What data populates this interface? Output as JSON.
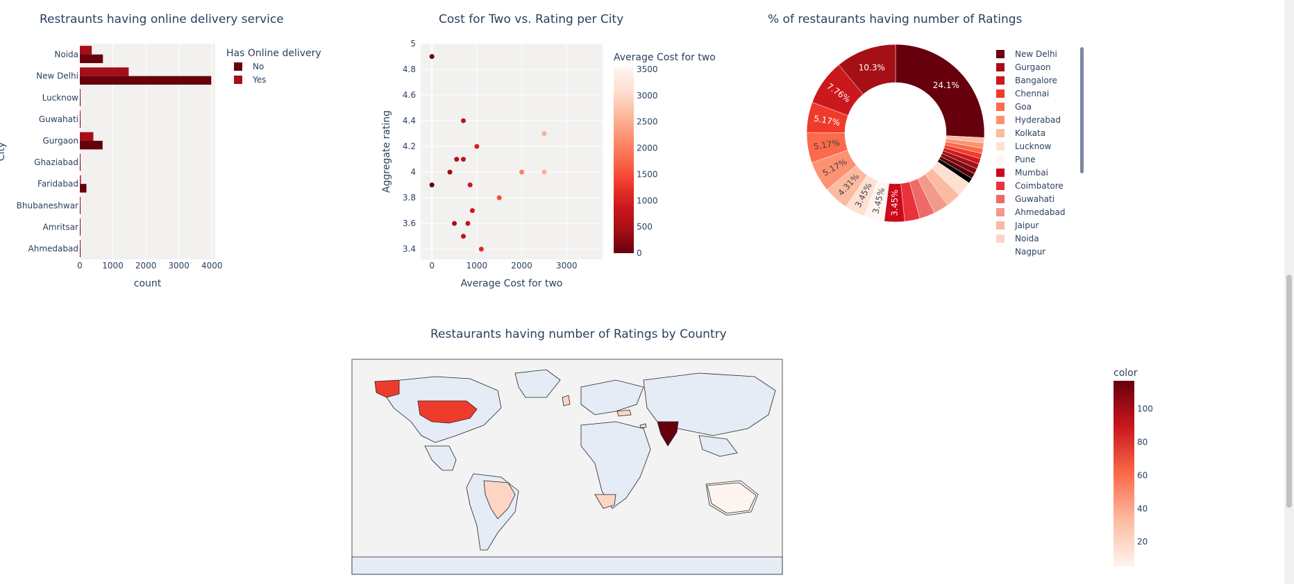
{
  "chart_data": [
    {
      "type": "bar",
      "orientation": "horizontal",
      "title": "Restraunts having online delivery service",
      "xlabel": "count",
      "ylabel": "City",
      "categories": [
        "Noida",
        "New Delhi",
        "Lucknow",
        "Guwahati",
        "Gurgaon",
        "Ghaziabad",
        "Faridabad",
        "Bhubaneshwar",
        "Amritsar",
        "Ahmedabad"
      ],
      "legend_title": "Has Online delivery",
      "series": [
        {
          "name": "No",
          "color": "#67000d",
          "values": [
            700,
            3980,
            15,
            15,
            690,
            20,
            200,
            20,
            18,
            8
          ]
        },
        {
          "name": "Yes",
          "color": "#a50f15",
          "values": [
            360,
            1480,
            6,
            5,
            410,
            5,
            30,
            3,
            2,
            2
          ]
        }
      ],
      "xticks": [
        0,
        1000,
        2000,
        3000,
        4000
      ],
      "xlim": [
        0,
        4100
      ]
    },
    {
      "type": "scatter",
      "title": "Cost for Two vs. Rating per City",
      "xlabel": "Average Cost for two",
      "ylabel": "Aggregate rating",
      "xticks": [
        0,
        1000,
        2000,
        3000
      ],
      "yticks": [
        3.4,
        3.6,
        3.8,
        4,
        4.2,
        4.4,
        4.6,
        4.8,
        5
      ],
      "xlim": [
        -250,
        3800
      ],
      "ylim": [
        3.32,
        5.0
      ],
      "colorbar_title": "Average Cost for two",
      "colorbar_ticks": [
        0,
        500,
        1000,
        1500,
        2000,
        2500,
        3000,
        3500
      ],
      "points": [
        {
          "x": 0,
          "y": 4.9
        },
        {
          "x": 0,
          "y": 3.9
        },
        {
          "x": 700,
          "y": 4.4
        },
        {
          "x": 1000,
          "y": 4.2
        },
        {
          "x": 550,
          "y": 4.1
        },
        {
          "x": 700,
          "y": 4.1
        },
        {
          "x": 400,
          "y": 4.0
        },
        {
          "x": 850,
          "y": 3.9
        },
        {
          "x": 1500,
          "y": 3.8
        },
        {
          "x": 900,
          "y": 3.7
        },
        {
          "x": 500,
          "y": 3.6
        },
        {
          "x": 800,
          "y": 3.6
        },
        {
          "x": 700,
          "y": 3.5
        },
        {
          "x": 1100,
          "y": 3.4
        },
        {
          "x": 2000,
          "y": 4.0
        },
        {
          "x": 2500,
          "y": 4.3
        },
        {
          "x": 2500,
          "y": 4.0
        }
      ]
    },
    {
      "type": "pie",
      "hole": true,
      "title": "% of restaurants having number of Ratings",
      "legend": [
        "New Delhi",
        "Gurgaon",
        "Bangalore",
        "Chennai",
        "Goa",
        "Hyderabad",
        "Kolkata",
        "Lucknow",
        "Pune",
        "Mumbai",
        "Coimbatore",
        "Guwahati",
        "Ahmedabad",
        "Jaipur",
        "Noida",
        "Nagpur"
      ],
      "legend_colors": [
        "#67000d",
        "#a50f15",
        "#cb181d",
        "#ef3b2c",
        "#fb6a4a",
        "#fc9272",
        "#fcbba1",
        "#fee0d2",
        "#fff5f0",
        "#cb0a1a",
        "#e8333b",
        "#ee6a6a",
        "#f39a8a",
        "#f9b9a8",
        "#fdd5c8",
        "#ffffff"
      ],
      "slices": [
        {
          "value": 24.1,
          "label": "24.1%",
          "color": "#67000d"
        },
        {
          "value": 0.9,
          "label": "",
          "color": "#fcbba1"
        },
        {
          "value": 0.9,
          "label": "",
          "color": "#fc9272"
        },
        {
          "value": 0.9,
          "label": "",
          "color": "#fb6a4a"
        },
        {
          "value": 0.9,
          "label": "",
          "color": "#ef3b2c"
        },
        {
          "value": 0.9,
          "label": "",
          "color": "#cb181d"
        },
        {
          "value": 0.9,
          "label": "",
          "color": "#a50f15"
        },
        {
          "value": 0.9,
          "label": "",
          "color": "#7a0a10"
        },
        {
          "value": 0.9,
          "label": "",
          "color": "#5a0009"
        },
        {
          "value": 0.9,
          "label": "",
          "color": "#000000"
        },
        {
          "value": 2.59,
          "label": "",
          "color": "#fee0d2"
        },
        {
          "value": 2.59,
          "label": "",
          "color": "#fcbba1"
        },
        {
          "value": 2.59,
          "label": "",
          "color": "#f39a8a"
        },
        {
          "value": 2.59,
          "label": "",
          "color": "#ee6a6a"
        },
        {
          "value": 2.59,
          "label": "",
          "color": "#e8333b"
        },
        {
          "value": 3.45,
          "label": "3.45%",
          "color": "#cb0a1a"
        },
        {
          "value": 3.45,
          "label": "3.45%",
          "color": "#fff5f0"
        },
        {
          "value": 3.45,
          "label": "3.45%",
          "color": "#fee0d2"
        },
        {
          "value": 4.31,
          "label": "4.31%",
          "color": "#fcbba1"
        },
        {
          "value": 5.17,
          "label": "5.17%",
          "color": "#fc9272"
        },
        {
          "value": 5.17,
          "label": "5.17%",
          "color": "#fb6a4a"
        },
        {
          "value": 5.17,
          "label": "5.17%",
          "color": "#ef3b2c"
        },
        {
          "value": 7.76,
          "label": "7.76%",
          "color": "#cb181d"
        },
        {
          "value": 10.3,
          "label": "10.3%",
          "color": "#a50f15"
        }
      ]
    },
    {
      "type": "choropleth",
      "title": "Restaurants having number of Ratings by Country",
      "colorbar_title": "color",
      "colorbar_ticks": [
        20,
        40,
        60,
        80,
        100
      ],
      "regions": [
        {
          "name": "India",
          "color": "#67000d"
        },
        {
          "name": "United States",
          "color": "#ef3b2c"
        },
        {
          "name": "Brazil",
          "color": "#fcd5c4"
        },
        {
          "name": "South Africa",
          "color": "#fcd5c4"
        },
        {
          "name": "Australia",
          "color": "#fff5f0"
        },
        {
          "name": "United Kingdom",
          "color": "#fcd5c4"
        },
        {
          "name": "Turkey",
          "color": "#fcd5c4"
        },
        {
          "name": "United Arab Emirates",
          "color": "#fcd5c4"
        }
      ]
    }
  ]
}
